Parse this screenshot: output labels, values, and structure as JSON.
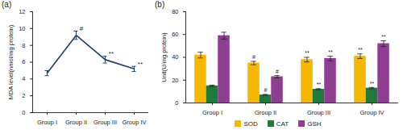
{
  "chart_data": [
    {
      "type": "line",
      "title": "(a)",
      "ylabel": "MDA level(nmol/mg protein)",
      "categories": [
        "Group I",
        "Group II",
        "Group III",
        "Group IV"
      ],
      "values": [
        4.7,
        9.2,
        6.3,
        5.2
      ],
      "errors": [
        0.3,
        0.5,
        0.4,
        0.3
      ],
      "annotations": [
        null,
        "#",
        "**",
        "**"
      ],
      "color": "#1f3d73",
      "ylim": [
        0,
        12
      ],
      "yticks": [
        0,
        2,
        4,
        6,
        8,
        10,
        12
      ]
    },
    {
      "type": "bar",
      "title": "(b)",
      "ylabel": "Unit(U/mg protein)",
      "categories": [
        "Group I",
        "Group II",
        "Group III",
        "Group IV"
      ],
      "series": [
        {
          "name": "SOD",
          "color": "#f5b700",
          "values": [
            42,
            35,
            38,
            41
          ],
          "errors": [
            2.5,
            1.5,
            2,
            2
          ],
          "annotations": [
            null,
            "#",
            "**",
            "**"
          ]
        },
        {
          "name": "CAT",
          "color": "#1e7b3c",
          "values": [
            15,
            7,
            12,
            13
          ],
          "errors": [
            0.6,
            0.5,
            0.5,
            0.6
          ],
          "annotations": [
            null,
            "#",
            "**",
            "**"
          ]
        },
        {
          "name": "GSH",
          "color": "#8e3f91",
          "values": [
            59,
            23,
            39,
            52
          ],
          "errors": [
            3,
            1,
            2,
            2.5
          ],
          "annotations": [
            null,
            "#",
            "**",
            "**"
          ]
        }
      ],
      "legend": "bottom",
      "ylim": [
        0,
        80
      ],
      "yticks": [
        0,
        20,
        40,
        60,
        80
      ]
    }
  ]
}
